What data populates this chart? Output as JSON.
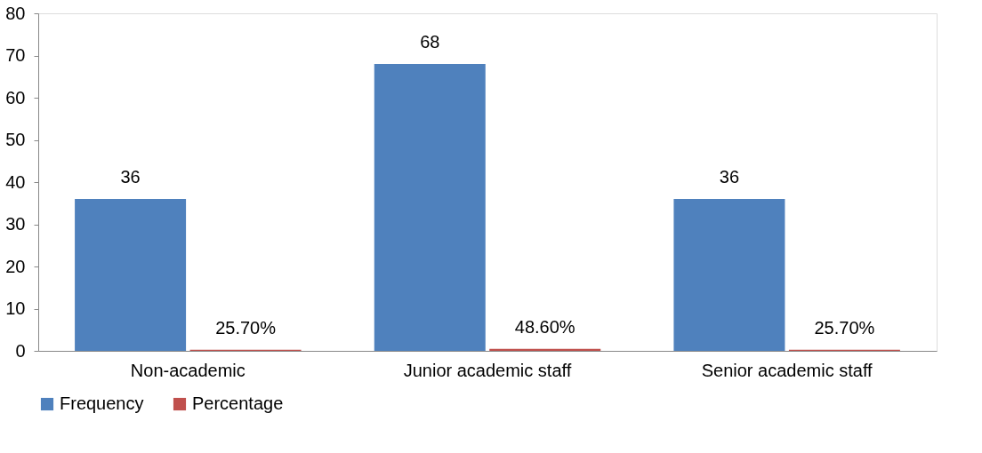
{
  "chart_data": {
    "type": "bar",
    "categories": [
      "Non-academic",
      "Junior academic staff",
      "Senior academic staff"
    ],
    "series": [
      {
        "name": "Frequency",
        "color": "#4f81bd",
        "values": [
          36,
          68,
          36
        ],
        "value_labels": [
          "36",
          "68",
          "36"
        ]
      },
      {
        "name": "Percentage",
        "color": "#c0504d",
        "values": [
          0.257,
          0.486,
          0.257
        ],
        "value_labels": [
          "25.70%",
          "48.60%",
          "25.70%"
        ]
      }
    ],
    "ylim": [
      0,
      80
    ],
    "yticks": [
      0,
      10,
      20,
      30,
      40,
      50,
      60,
      70,
      80
    ],
    "grid": false,
    "legend": "bottom"
  }
}
